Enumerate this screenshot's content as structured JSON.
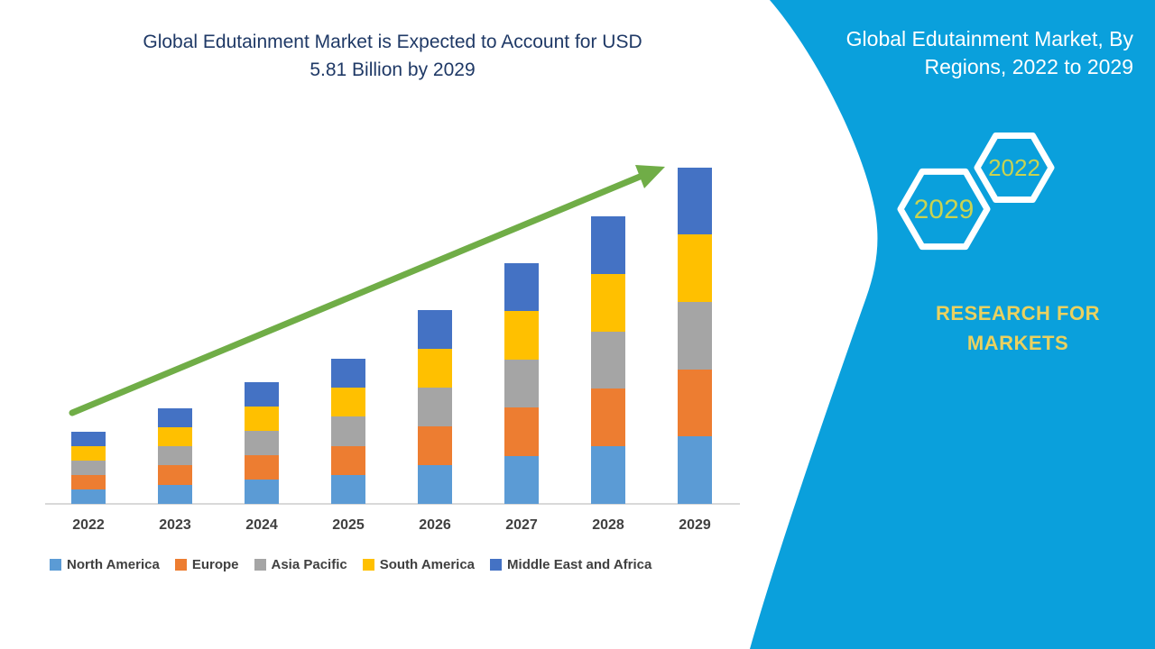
{
  "chart": {
    "title_lines": [
      "Global Edutainment Market is Expected to Account for USD",
      "5.81 Billion by 2029"
    ],
    "title_color": "#1F3966"
  },
  "chart_data": {
    "type": "bar",
    "stacked": true,
    "title": "Global Edutainment Market is Expected to Account for USD 5.81 Billion by 2029",
    "unit": "USD Billion",
    "categories": [
      "2022",
      "2023",
      "2024",
      "2025",
      "2026",
      "2027",
      "2028",
      "2029"
    ],
    "series": [
      {
        "name": "North America",
        "color": "#5B9BD5",
        "values": [
          0.25,
          0.33,
          0.42,
          0.5,
          0.67,
          0.83,
          0.99,
          1.16
        ]
      },
      {
        "name": "Europe",
        "color": "#ED7D31",
        "values": [
          0.25,
          0.33,
          0.42,
          0.5,
          0.67,
          0.83,
          0.99,
          1.16
        ]
      },
      {
        "name": "Asia Pacific",
        "color": "#A5A5A5",
        "values": [
          0.25,
          0.33,
          0.42,
          0.5,
          0.67,
          0.83,
          0.99,
          1.16
        ]
      },
      {
        "name": "South America",
        "color": "#FFC000",
        "values": [
          0.25,
          0.33,
          0.42,
          0.5,
          0.67,
          0.83,
          0.99,
          1.16
        ]
      },
      {
        "name": "Middle East and Africa",
        "color": "#4472C4",
        "values": [
          0.25,
          0.33,
          0.42,
          0.5,
          0.67,
          0.83,
          0.99,
          1.16
        ]
      }
    ],
    "totals": [
      1.26,
      1.67,
      2.09,
      2.51,
      3.33,
      4.16,
      4.97,
      5.81
    ],
    "xlabel": "",
    "ylabel": "",
    "y_axis_visible": false,
    "grid": false,
    "legend_position": "bottom",
    "annotations": [
      "upward trend arrow from 2022 to 2029"
    ],
    "trend_arrow_color": "#70AD47",
    "axis_line_color": "#D9D9D9",
    "tick_label_color": "#404040"
  },
  "side_panel": {
    "bg_color": "#0AA0DC",
    "title_lines": [
      "Global Edutainment Market, By",
      "Regions, 2022 to 2029"
    ],
    "title_color": "#FFFFFF",
    "badges": [
      {
        "label": "2029"
      },
      {
        "label": "2022"
      }
    ],
    "badge_text_color": "#C9D351",
    "brand_lines": [
      "RESEARCH FOR",
      "MARKETS"
    ],
    "brand_color": "#EAD15F"
  }
}
